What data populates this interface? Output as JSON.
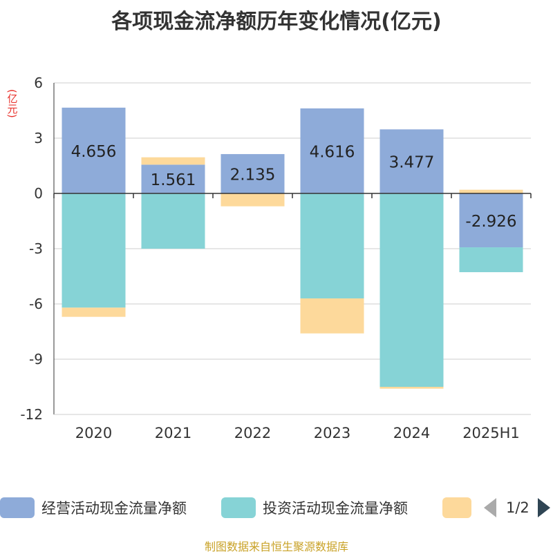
{
  "title": "各项现金流净额历年变化情况(亿元)",
  "unit_label": "(亿元)",
  "source": "制图数据来自恒生聚源数据库",
  "pager": {
    "text": "1/2"
  },
  "legend": [
    {
      "name": "经营活动现金流量净额",
      "color": "#8eabd9"
    },
    {
      "name": "投资活动现金流量净额",
      "color": "#86d3d6"
    },
    {
      "name": "",
      "color": "#fdd99b"
    }
  ],
  "chart_data": {
    "type": "bar",
    "stacked": true,
    "categories": [
      "2020",
      "2021",
      "2022",
      "2023",
      "2024",
      "2025H1"
    ],
    "ylim": [
      -12,
      6
    ],
    "yticks": [
      6,
      3,
      0,
      -3,
      -6,
      -9,
      -12
    ],
    "grid": true,
    "legend_position": "bottom",
    "series": [
      {
        "name": "经营活动现金流量净额",
        "color": "#8eabd9",
        "values": [
          4.656,
          1.561,
          2.135,
          4.616,
          3.477,
          -2.926
        ],
        "labels": [
          "4.656",
          "1.561",
          "2.135",
          "4.616",
          "3.477",
          "-2.926"
        ]
      },
      {
        "name": "投资活动现金流量净额",
        "color": "#86d3d6",
        "values": [
          -6.2,
          -3.0,
          0,
          -5.7,
          -10.5,
          -1.35
        ]
      },
      {
        "name": "",
        "color": "#fdd99b",
        "values": [
          -0.5,
          0.4,
          -0.7,
          -1.9,
          -0.1,
          0.2
        ]
      }
    ]
  }
}
